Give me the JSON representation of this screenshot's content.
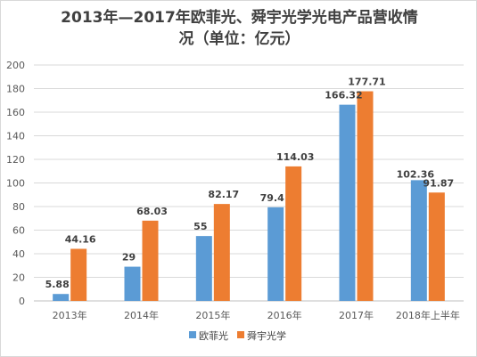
{
  "chart_data": {
    "type": "bar",
    "title_line1": "2013年—2017年欧菲光、舜宇光学光电产品营收情",
    "title_line2": "况（单位：亿元）",
    "categories": [
      "2013年",
      "2014年",
      "2015年",
      "2016年",
      "2017年",
      "2018年上半年"
    ],
    "series": [
      {
        "name": "欧菲光",
        "color": "#5b9bd5",
        "values": [
          5.88,
          29,
          55,
          79.4,
          166.32,
          102.36
        ],
        "labels": [
          "5.88",
          "29",
          "55",
          "79.4",
          "166.32",
          "102.36"
        ]
      },
      {
        "name": "舜宇光学",
        "color": "#ed7d31",
        "values": [
          44.16,
          68.03,
          82.17,
          114.03,
          177.71,
          91.87
        ],
        "labels": [
          "44.16",
          "68.03",
          "82.17",
          "114.03",
          "177.71",
          "91.87"
        ]
      }
    ],
    "ylim": [
      0,
      200
    ],
    "yticks": [
      0,
      20,
      40,
      60,
      80,
      100,
      120,
      140,
      160,
      180,
      200
    ],
    "grid": true,
    "legend": "bottom"
  }
}
